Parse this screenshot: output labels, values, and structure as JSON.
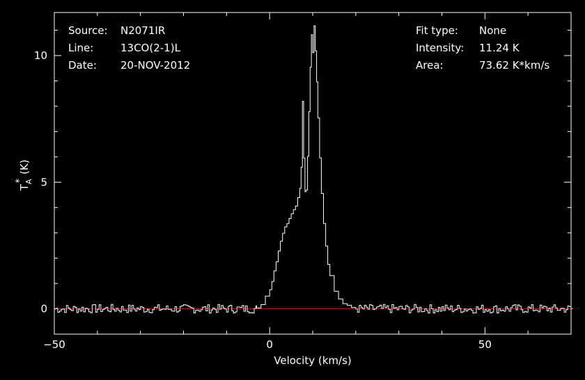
{
  "header": {
    "left": [
      {
        "key": "Source:",
        "value": "N2071IR"
      },
      {
        "key": "Line:",
        "value": "13CO(2-1)L"
      },
      {
        "key": "Date:",
        "value": "20-NOV-2012"
      }
    ],
    "right": [
      {
        "key": "Fit type:",
        "value": "None"
      },
      {
        "key": "Intensity:",
        "value": "11.24 K"
      },
      {
        "key": "Area:",
        "value": "73.62 K*km/s"
      }
    ]
  },
  "colors": {
    "background": "#000000",
    "axes": "#ffffff",
    "spectrum": "#ffffff",
    "baseline": "#ff0000"
  },
  "chart_data": {
    "type": "line",
    "xlabel": "Velocity (km/s)",
    "ylabel_main": "T",
    "ylabel_sup": "*",
    "ylabel_sub": "A",
    "ylabel_unit": "(K)",
    "xlim": [
      -50,
      70
    ],
    "ylim": [
      -1.0,
      11.7
    ],
    "x_ticks": [
      -50,
      0,
      50
    ],
    "y_ticks": [
      0,
      5,
      10
    ],
    "baseline_y": 0,
    "grid": false,
    "series": [
      {
        "x": [
          -3.0,
          -2.0,
          -1.0,
          0.0,
          0.5,
          1.0,
          1.5,
          2.0,
          2.5,
          3.0,
          3.5,
          4.0,
          4.5,
          5.0,
          5.5,
          6.0,
          6.5,
          7.0,
          7.3,
          7.6,
          7.9,
          8.2,
          8.5,
          8.8,
          9.1,
          9.4,
          9.7,
          10.0,
          10.3,
          10.6,
          10.9,
          11.2,
          11.6,
          12.0,
          12.5,
          13.0,
          13.5,
          14.0,
          15.0,
          16.0,
          17.0,
          18.0,
          19.0,
          20.0
        ],
        "y": [
          0.0,
          0.2,
          0.5,
          0.8,
          1.1,
          1.5,
          1.9,
          2.3,
          2.7,
          3.0,
          3.2,
          3.4,
          3.6,
          3.8,
          3.9,
          4.1,
          4.4,
          4.8,
          5.6,
          8.2,
          6.0,
          4.6,
          4.7,
          6.0,
          7.8,
          9.5,
          10.8,
          10.1,
          11.2,
          10.2,
          9.0,
          7.5,
          6.0,
          4.6,
          3.4,
          2.5,
          1.8,
          1.3,
          0.7,
          0.4,
          0.2,
          0.1,
          0.05,
          0.0
        ]
      }
    ]
  }
}
